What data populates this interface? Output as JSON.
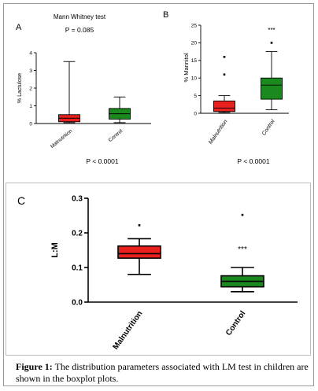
{
  "caption": {
    "label": "Figure 1:",
    "text": " The distribution parameters associated with LM test in children are shown in the boxplot plots."
  },
  "colors": {
    "malnutrition": "#e8201e",
    "control": "#1a8a1e",
    "axis": "#000000"
  },
  "chart_data": [
    {
      "panel": "A",
      "type": "boxplot",
      "title": "Mann Whitney test",
      "subtitle": "P = 0.085",
      "ylabel": "% Lactulose",
      "ylim": [
        0,
        4
      ],
      "yticks": [
        "0",
        "1",
        "2",
        "3",
        "4"
      ],
      "categories": [
        "Malnutrition",
        "Control"
      ],
      "boxes": [
        {
          "name": "Malnutrition",
          "whisker_low": 0.05,
          "q1": 0.1,
          "median": 0.3,
          "q3": 0.5,
          "whisker_high": 3.5,
          "outliers": []
        },
        {
          "name": "Control",
          "whisker_low": 0.05,
          "q1": 0.25,
          "median": 0.55,
          "q3": 0.85,
          "whisker_high": 1.5,
          "outliers": []
        }
      ],
      "annotations": [],
      "footnote": "P < 0.0001"
    },
    {
      "panel": "B",
      "type": "boxplot",
      "title": "",
      "subtitle": "",
      "ylabel": "% Mannitol",
      "ylim": [
        0,
        25
      ],
      "yticks": [
        "0",
        "5",
        "10",
        "15",
        "20",
        "25"
      ],
      "categories": [
        "Malnutrition",
        "Control"
      ],
      "boxes": [
        {
          "name": "Malnutrition",
          "whisker_low": 0.2,
          "q1": 0.5,
          "median": 1.5,
          "q3": 3.5,
          "whisker_high": 5,
          "outliers": [
            11,
            16
          ]
        },
        {
          "name": "Control",
          "whisker_low": 1,
          "q1": 4,
          "median": 8,
          "q3": 10,
          "whisker_high": 17.5,
          "outliers": [
            20
          ]
        }
      ],
      "annotations": [
        {
          "category": "Control",
          "text": "***",
          "y": 23
        }
      ],
      "footnote": "P < 0.0001"
    },
    {
      "panel": "C",
      "type": "boxplot",
      "title": "",
      "subtitle": "",
      "ylabel": "L:M",
      "ylim": [
        0,
        0.3
      ],
      "yticks": [
        "0.0",
        "0.1",
        "0.2",
        "0.3"
      ],
      "categories": [
        "Malnutrition",
        "Control"
      ],
      "boxes": [
        {
          "name": "Malnutrition",
          "whisker_low": 0.08,
          "q1": 0.127,
          "median": 0.14,
          "q3": 0.162,
          "whisker_high": 0.183,
          "outliers": [
            0.222
          ]
        },
        {
          "name": "Control",
          "whisker_low": 0.03,
          "q1": 0.044,
          "median": 0.06,
          "q3": 0.076,
          "whisker_high": 0.1,
          "outliers": [
            0.252
          ]
        }
      ],
      "annotations": [
        {
          "category": "Control",
          "text": "***",
          "y": 0.145
        }
      ],
      "footnote": ""
    }
  ]
}
